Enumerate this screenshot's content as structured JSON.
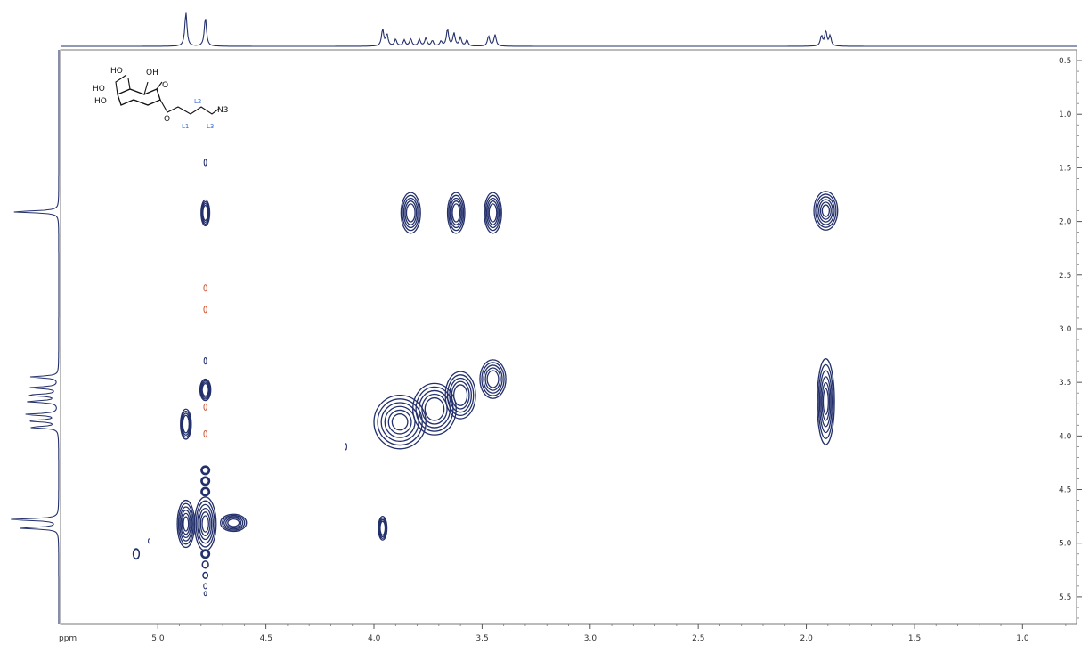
{
  "chart_data": {
    "type": "heatmap",
    "title": "",
    "xlabel": "ppm",
    "ylabel": "",
    "xlim": [
      5.45,
      0.75
    ],
    "ylim": [
      0.4,
      5.75
    ],
    "x_ticks": [
      "5.0",
      "4.5",
      "4.0",
      "3.5",
      "3.0",
      "2.5",
      "2.0",
      "1.5",
      "1.0"
    ],
    "y_ticks": [
      "0.5",
      "1.0",
      "1.5",
      "2.0",
      "2.5",
      "3.0",
      "3.5",
      "4.0",
      "4.5",
      "5.0",
      "5.5"
    ],
    "colors": {
      "positive": "#23306b",
      "negative": "#d05a3a",
      "frame": "#555555"
    },
    "projection_peaks_f2": [
      {
        "ppm": 4.87,
        "h": 1.0
      },
      {
        "ppm": 4.78,
        "h": 0.85
      },
      {
        "ppm": 3.96,
        "h": 0.5
      },
      {
        "ppm": 3.94,
        "h": 0.35
      },
      {
        "ppm": 3.9,
        "h": 0.2
      },
      {
        "ppm": 3.86,
        "h": 0.18
      },
      {
        "ppm": 3.83,
        "h": 0.22
      },
      {
        "ppm": 3.79,
        "h": 0.2
      },
      {
        "ppm": 3.76,
        "h": 0.24
      },
      {
        "ppm": 3.73,
        "h": 0.16
      },
      {
        "ppm": 3.69,
        "h": 0.14
      },
      {
        "ppm": 3.66,
        "h": 0.5
      },
      {
        "ppm": 3.63,
        "h": 0.38
      },
      {
        "ppm": 3.6,
        "h": 0.25
      },
      {
        "ppm": 3.57,
        "h": 0.18
      },
      {
        "ppm": 3.47,
        "h": 0.3
      },
      {
        "ppm": 3.44,
        "h": 0.34
      },
      {
        "ppm": 1.93,
        "h": 0.3
      },
      {
        "ppm": 1.91,
        "h": 0.44
      },
      {
        "ppm": 1.89,
        "h": 0.3
      }
    ],
    "projection_peaks_f1": [
      {
        "ppm": 1.91,
        "h": 0.9
      },
      {
        "ppm": 3.45,
        "h": 0.55
      },
      {
        "ppm": 3.55,
        "h": 0.55
      },
      {
        "ppm": 3.62,
        "h": 0.6
      },
      {
        "ppm": 3.68,
        "h": 0.6
      },
      {
        "ppm": 3.8,
        "h": 0.65
      },
      {
        "ppm": 3.86,
        "h": 0.6
      },
      {
        "ppm": 3.92,
        "h": 0.55
      },
      {
        "ppm": 4.78,
        "h": 0.95
      },
      {
        "ppm": 4.86,
        "h": 0.75
      }
    ],
    "cross_peaks": [
      {
        "x": 4.78,
        "y": 1.92,
        "wx": 0.02,
        "wy": 0.12,
        "levels": 4,
        "type": "positive"
      },
      {
        "x": 4.78,
        "y": 3.57,
        "wx": 0.025,
        "wy": 0.1,
        "levels": 4,
        "type": "positive"
      },
      {
        "x": 4.87,
        "y": 3.89,
        "wx": 0.025,
        "wy": 0.14,
        "levels": 4,
        "type": "positive"
      },
      {
        "x": 4.78,
        "y": 1.45,
        "wx": 0.006,
        "wy": 0.03,
        "levels": 1,
        "type": "positive"
      },
      {
        "x": 4.78,
        "y": 3.3,
        "wx": 0.006,
        "wy": 0.03,
        "levels": 1,
        "type": "positive"
      },
      {
        "x": 4.78,
        "y": 2.62,
        "wx": 0.007,
        "wy": 0.03,
        "levels": 1,
        "type": "negative"
      },
      {
        "x": 4.78,
        "y": 2.82,
        "wx": 0.007,
        "wy": 0.03,
        "levels": 1,
        "type": "negative"
      },
      {
        "x": 4.78,
        "y": 3.73,
        "wx": 0.007,
        "wy": 0.03,
        "levels": 1,
        "type": "negative"
      },
      {
        "x": 4.78,
        "y": 3.98,
        "wx": 0.007,
        "wy": 0.03,
        "levels": 1,
        "type": "negative"
      },
      {
        "x": 3.83,
        "y": 1.92,
        "wx": 0.045,
        "wy": 0.19,
        "levels": 5,
        "type": "positive"
      },
      {
        "x": 3.62,
        "y": 1.92,
        "wx": 0.04,
        "wy": 0.19,
        "levels": 5,
        "type": "positive"
      },
      {
        "x": 3.45,
        "y": 1.92,
        "wx": 0.04,
        "wy": 0.19,
        "levels": 5,
        "type": "positive"
      },
      {
        "x": 1.91,
        "y": 1.9,
        "wx": 0.055,
        "wy": 0.18,
        "levels": 6,
        "type": "positive"
      },
      {
        "x": 1.91,
        "y": 3.68,
        "wx": 0.04,
        "wy": 0.4,
        "levels": 6,
        "type": "positive"
      },
      {
        "x": 3.88,
        "y": 3.87,
        "wx": 0.12,
        "wy": 0.25,
        "levels": 6,
        "type": "positive"
      },
      {
        "x": 3.72,
        "y": 3.75,
        "wx": 0.1,
        "wy": 0.24,
        "levels": 5,
        "type": "positive"
      },
      {
        "x": 3.6,
        "y": 3.62,
        "wx": 0.07,
        "wy": 0.22,
        "levels": 5,
        "type": "positive"
      },
      {
        "x": 3.45,
        "y": 3.47,
        "wx": 0.06,
        "wy": 0.18,
        "levels": 5,
        "type": "positive"
      },
      {
        "x": 3.96,
        "y": 4.86,
        "wx": 0.02,
        "wy": 0.11,
        "levels": 4,
        "type": "positive"
      },
      {
        "x": 4.13,
        "y": 4.1,
        "wx": 0.004,
        "wy": 0.03,
        "levels": 1,
        "type": "positive"
      },
      {
        "x": 4.87,
        "y": 4.82,
        "wx": 0.04,
        "wy": 0.22,
        "levels": 6,
        "type": "positive"
      },
      {
        "x": 4.78,
        "y": 4.82,
        "wx": 0.05,
        "wy": 0.25,
        "levels": 6,
        "type": "positive"
      },
      {
        "x": 4.65,
        "y": 4.81,
        "wx": 0.06,
        "wy": 0.08,
        "levels": 5,
        "type": "positive"
      },
      {
        "x": 4.78,
        "y": 4.32,
        "wx": 0.02,
        "wy": 0.04,
        "levels": 3,
        "type": "positive"
      },
      {
        "x": 4.78,
        "y": 4.42,
        "wx": 0.02,
        "wy": 0.04,
        "levels": 3,
        "type": "positive"
      },
      {
        "x": 4.78,
        "y": 4.52,
        "wx": 0.02,
        "wy": 0.04,
        "levels": 3,
        "type": "positive"
      },
      {
        "x": 4.78,
        "y": 5.1,
        "wx": 0.02,
        "wy": 0.04,
        "levels": 3,
        "type": "positive"
      },
      {
        "x": 4.78,
        "y": 5.2,
        "wx": 0.015,
        "wy": 0.035,
        "levels": 2,
        "type": "positive"
      },
      {
        "x": 4.78,
        "y": 5.3,
        "wx": 0.012,
        "wy": 0.03,
        "levels": 2,
        "type": "positive"
      },
      {
        "x": 4.78,
        "y": 5.4,
        "wx": 0.008,
        "wy": 0.025,
        "levels": 1,
        "type": "positive"
      },
      {
        "x": 4.78,
        "y": 5.47,
        "wx": 0.006,
        "wy": 0.02,
        "levels": 1,
        "type": "positive"
      },
      {
        "x": 5.1,
        "y": 5.1,
        "wx": 0.015,
        "wy": 0.05,
        "levels": 2,
        "type": "positive"
      },
      {
        "x": 5.04,
        "y": 4.98,
        "wx": 0.004,
        "wy": 0.02,
        "levels": 1,
        "type": "positive"
      }
    ],
    "structure": {
      "ring_labels": [
        "HO",
        "HO",
        "HO",
        "OH",
        "O"
      ],
      "chain_labels": [
        "O",
        "N3"
      ],
      "position_labels": [
        "L1",
        "L2",
        "L3"
      ]
    }
  }
}
